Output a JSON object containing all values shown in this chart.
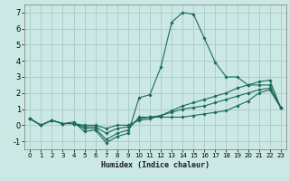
{
  "xlabel": "Humidex (Indice chaleur)",
  "ylabel": "",
  "bg_color": "#cce8e4",
  "grid_color": "#aacfcb",
  "line_color": "#1a6b5a",
  "xlim": [
    -0.5,
    23.5
  ],
  "ylim": [
    -1.5,
    7.5
  ],
  "xticks": [
    0,
    1,
    2,
    3,
    4,
    5,
    6,
    7,
    8,
    9,
    10,
    11,
    12,
    13,
    14,
    15,
    16,
    17,
    18,
    19,
    20,
    21,
    22,
    23
  ],
  "yticks": [
    -1,
    0,
    1,
    2,
    3,
    4,
    5,
    6,
    7
  ],
  "series": [
    [
      0.4,
      0.0,
      0.3,
      0.1,
      0.2,
      -0.4,
      -0.3,
      -1.1,
      -0.7,
      -0.5,
      1.7,
      1.9,
      3.6,
      6.4,
      7.0,
      6.9,
      5.4,
      3.9,
      3.0,
      3.0,
      2.5,
      2.5,
      2.5,
      1.1
    ],
    [
      0.4,
      0.0,
      0.3,
      0.1,
      0.1,
      -0.2,
      -0.2,
      -0.9,
      -0.5,
      -0.3,
      0.5,
      0.5,
      0.5,
      0.5,
      0.5,
      0.6,
      0.7,
      0.8,
      0.9,
      1.2,
      1.5,
      2.0,
      2.2,
      1.1
    ],
    [
      0.4,
      0.0,
      0.3,
      0.1,
      0.1,
      -0.1,
      -0.1,
      -0.5,
      -0.2,
      -0.1,
      0.4,
      0.5,
      0.6,
      0.8,
      1.0,
      1.1,
      1.2,
      1.4,
      1.6,
      1.8,
      2.0,
      2.2,
      2.3,
      1.1
    ],
    [
      0.4,
      0.0,
      0.3,
      0.1,
      0.1,
      0.0,
      0.0,
      -0.2,
      0.0,
      0.0,
      0.3,
      0.4,
      0.6,
      0.9,
      1.2,
      1.4,
      1.6,
      1.8,
      2.0,
      2.3,
      2.5,
      2.7,
      2.8,
      1.1
    ]
  ]
}
